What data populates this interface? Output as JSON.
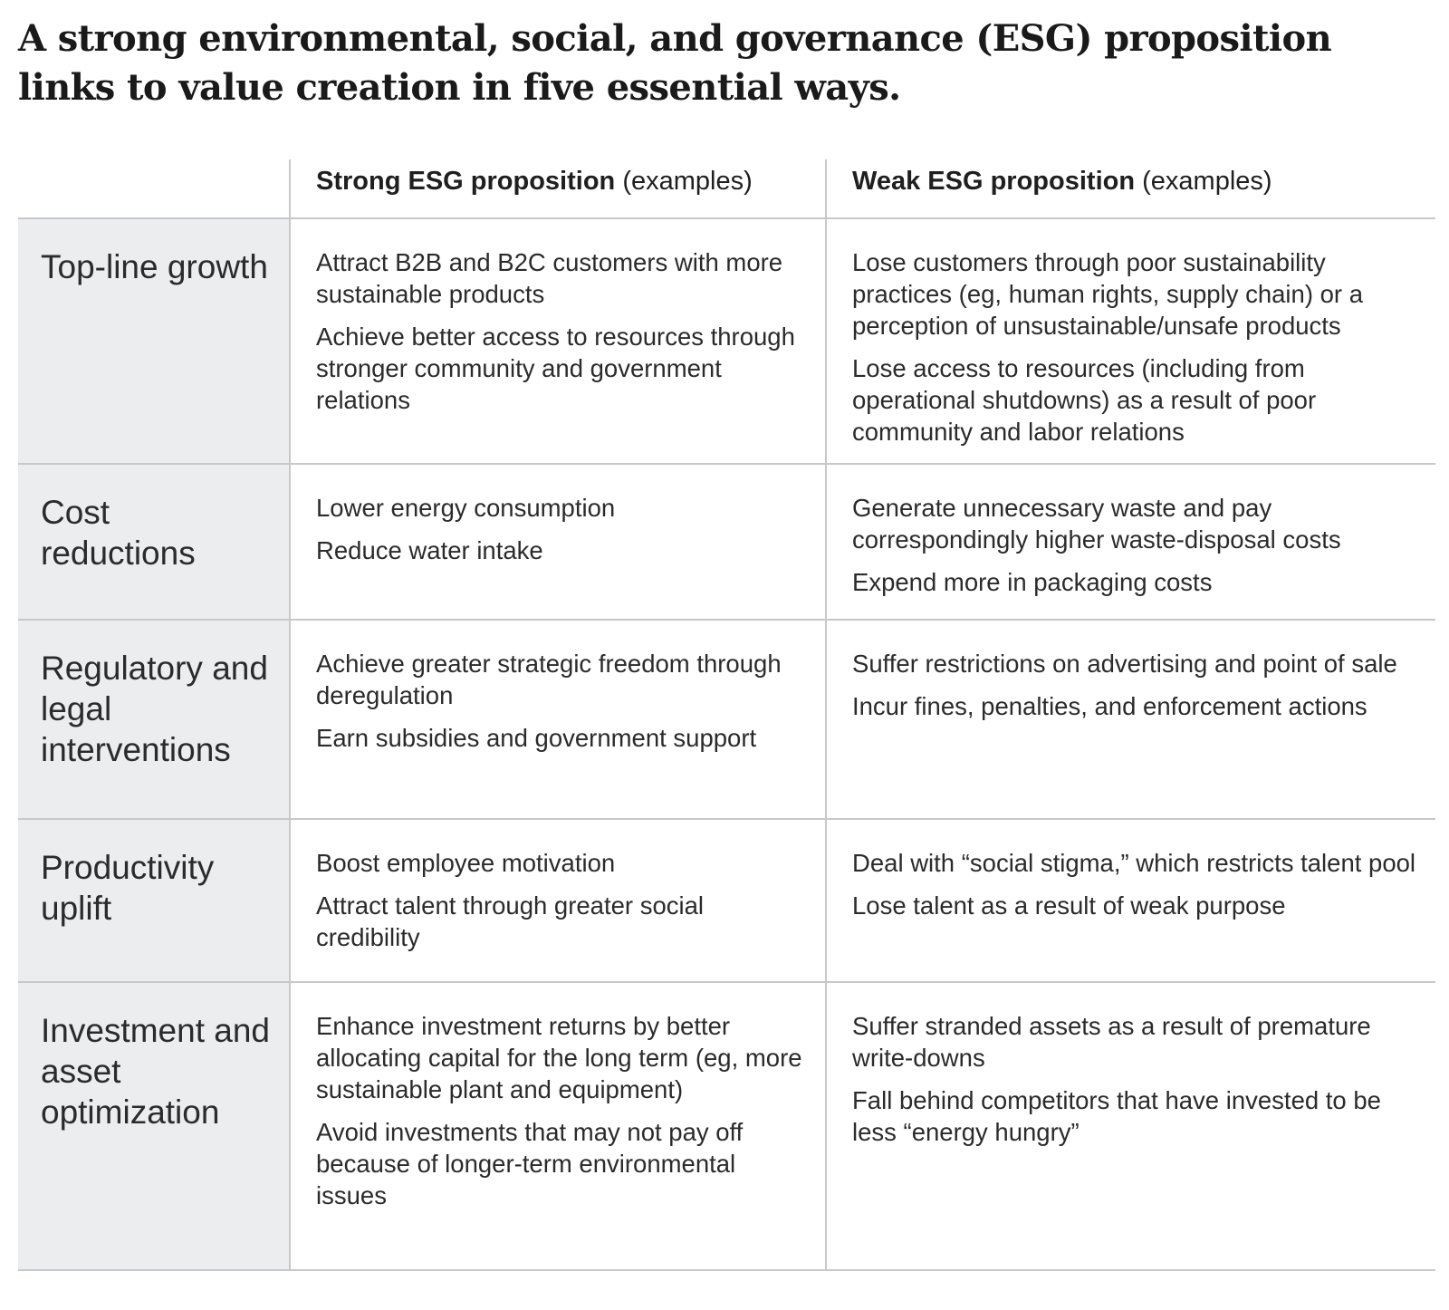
{
  "title": "A strong environmental, social, and governance (ESG) proposition links to value creation in five essential ways.",
  "header": {
    "strong_bold": "Strong ESG proposition",
    "strong_suffix": "(examples)",
    "weak_bold": "Weak ESG proposition",
    "weak_suffix": "(examples)"
  },
  "rows": [
    {
      "label": "Top-line growth",
      "strong": [
        "Attract B2B and B2C customers with more sustainable products",
        "Achieve better access to resources through stronger community and government relations"
      ],
      "weak": [
        "Lose customers through poor sustainability practices (eg, human rights, supply chain) or a perception of unsustainable/unsafe products",
        "Lose access to resources (including from operational shutdowns) as a result of poor community and labor relations"
      ]
    },
    {
      "label": "Cost reductions",
      "strong": [
        "Lower energy consumption",
        "Reduce water intake"
      ],
      "weak": [
        "Generate unnecessary waste and pay correspondingly higher waste-disposal costs",
        "Expend more in packaging costs"
      ]
    },
    {
      "label": "Regulatory and legal interventions",
      "strong": [
        "Achieve greater strategic freedom through deregulation",
        "Earn subsidies and government support"
      ],
      "weak": [
        "Suffer restrictions on advertising and point of sale",
        "Incur fines, penalties, and enforcement actions"
      ]
    },
    {
      "label": "Productivity uplift",
      "strong": [
        "Boost employee motivation",
        "Attract talent through greater social credibility"
      ],
      "weak": [
        "Deal with “social stigma,” which restricts talent pool",
        "Lose talent as a result of weak purpose"
      ]
    },
    {
      "label": "Investment and asset optimization",
      "strong": [
        "Enhance investment returns by better allocating capital for the long term (eg, more sustainable plant and equipment)",
        "Avoid investments that may not pay off because of longer-term environmental issues"
      ],
      "weak": [
        "Suffer stranded assets as a result of premature write-downs",
        "Fall behind competitors that have invested to be less “energy hungry”"
      ]
    }
  ]
}
